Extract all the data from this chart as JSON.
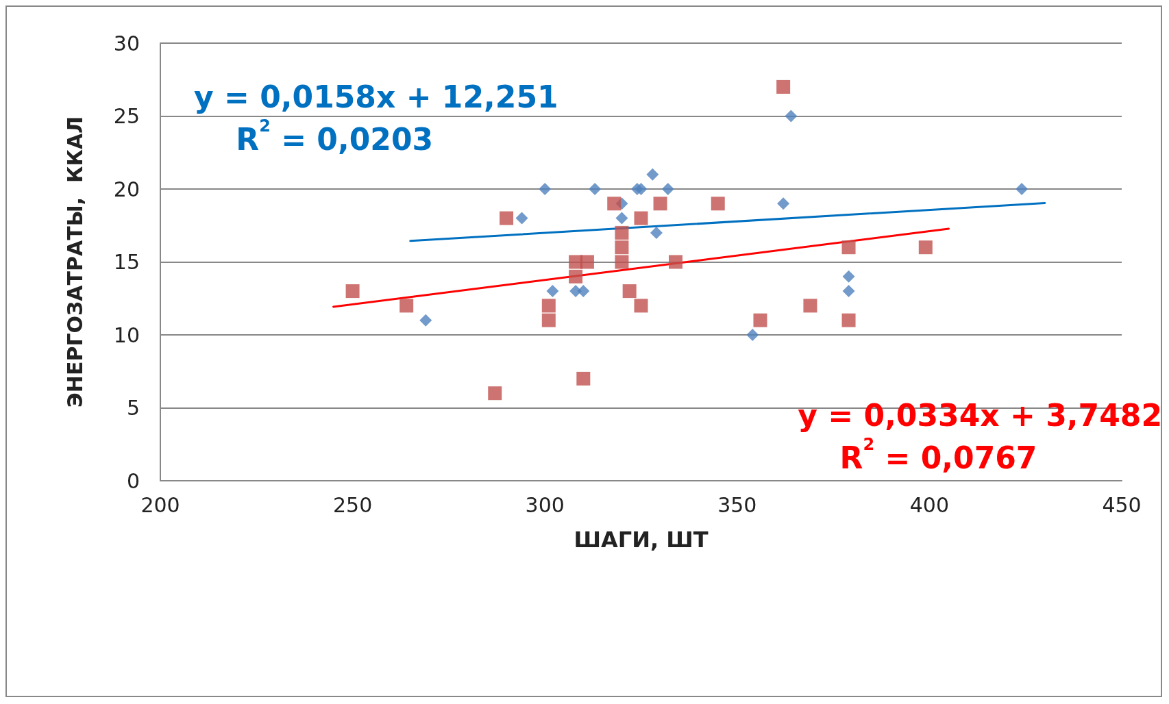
{
  "chart_data": {
    "type": "scatter",
    "xlabel": "ШАГИ, ШТ",
    "ylabel": "ЭНЕРГОЗАТРАТЫ,  ККАЛ",
    "xlim": [
      200,
      450
    ],
    "xticks": [
      200,
      250,
      300,
      350,
      400,
      450
    ],
    "ylim": [
      0,
      30
    ],
    "yticks": [
      0,
      5,
      10,
      15,
      20,
      25,
      30
    ],
    "grid": "y",
    "series": [
      {
        "color": "#4f81bd",
        "marker": "diamond",
        "x": [
          269,
          294,
          300,
          302,
          313,
          308,
          310,
          320,
          320,
          324,
          325,
          328,
          329,
          332,
          354,
          362,
          364,
          379,
          379,
          424
        ],
        "values": [
          11,
          18,
          20,
          13,
          20,
          13,
          13,
          18,
          19,
          20,
          20,
          21,
          17,
          20,
          10,
          19,
          25,
          14,
          13,
          20
        ]
      },
      {
        "color": "#c0504d",
        "marker": "square",
        "x": [
          250,
          264,
          287,
          290,
          301,
          301,
          308,
          308,
          311,
          310,
          318,
          320,
          320,
          320,
          322,
          325,
          325,
          330,
          334,
          345,
          362,
          356,
          369,
          379,
          379,
          399
        ],
        "values": [
          13,
          12,
          6,
          18,
          12,
          11,
          15,
          14,
          15,
          7,
          19,
          17,
          16,
          15,
          13,
          18,
          12,
          19,
          15,
          19,
          27,
          11,
          12,
          16,
          11,
          16
        ]
      },
      {
        "type": "line",
        "color": "#0070c0",
        "marker": "none",
        "x": [
          265,
          430
        ],
        "values": [
          16.44,
          19.04
        ]
      },
      {
        "type": "line",
        "color": "#ff0000",
        "marker": "none",
        "x": [
          245,
          405
        ],
        "values": [
          11.93,
          17.28
        ]
      }
    ],
    "annotations": [
      "y = 0,0158x + 12,251\nR$^{2}$ = 0,0203",
      "y = 0,0334x + 3,7482\nR$^{2}$ = 0,0767"
    ]
  }
}
